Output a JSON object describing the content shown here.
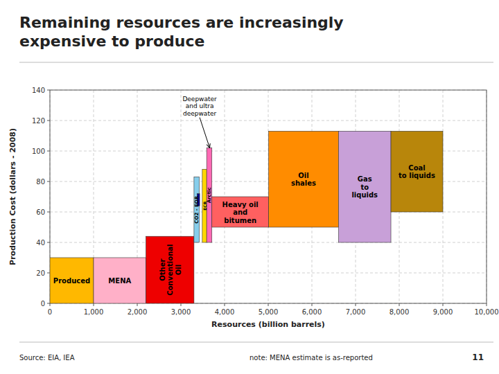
{
  "chart_data": {
    "type": "rect",
    "title": "Remaining resources are increasingly\nexpensive to produce",
    "x_label": "Resources (billion barrels)",
    "y_label": "Production Cost (dollars - 2008)",
    "categories": [
      "Produced",
      "MENA",
      "Other\nConventional\nOil",
      "CO2 - EOR",
      null,
      "ECR",
      "Arctic",
      "Heavy oil\nand\nbitumen",
      "Oil\nshales",
      "Gas\nto\nliquids",
      "Coal\nto liquids"
    ],
    "x": [
      0,
      1000,
      2200,
      3300,
      3370,
      3490,
      3590,
      3710,
      5010,
      6610,
      7810
    ],
    "widths": [
      1000,
      1200,
      1100,
      120,
      60,
      100,
      120,
      1300,
      1600,
      1200,
      1190
    ],
    "bottoms": [
      0,
      0,
      0,
      40,
      64,
      40,
      40,
      50,
      50,
      40,
      60
    ],
    "values": [
      30,
      30,
      44,
      43,
      8,
      48,
      62,
      20,
      63,
      73,
      53
    ],
    "colors": [
      "#FFB800",
      "#FFB0C8",
      "#EE0000",
      "#87CEEB",
      "#00008B",
      "#FFD700",
      "#FF69B4",
      "#FF6060",
      "#FF8C00",
      "#C8A0D8",
      "#B8860B"
    ],
    "annotations": [
      {
        "text": "Deepwater\nand ultra\ndeepwater",
        "x": 3660,
        "y": 102,
        "text_x": 3430,
        "text_y": 122
      }
    ],
    "xlim": [
      0,
      10000
    ],
    "ylim": [
      0,
      140
    ],
    "xticks": [
      0,
      {
        "value": 1000,
        "label": "1,000"
      },
      {
        "value": 2000,
        "label": "2,000"
      },
      {
        "value": 3000,
        "label": "3,000"
      },
      {
        "value": 4000,
        "label": "4,000"
      },
      {
        "value": 5000,
        "label": "5,000"
      },
      {
        "value": 6000,
        "label": "6,000"
      },
      {
        "value": 7000,
        "label": "7,000"
      },
      {
        "value": 8000,
        "label": "8,000"
      },
      {
        "value": 9000,
        "label": "9,000"
      },
      {
        "value": 10000,
        "label": "10,000"
      }
    ],
    "yticks": [
      0,
      20,
      40,
      60,
      80,
      100,
      120,
      140
    ],
    "grid": true,
    "source": "Source: EIA, IEA",
    "note": "note: MENA estimate is as-reported",
    "page_number": "11"
  }
}
